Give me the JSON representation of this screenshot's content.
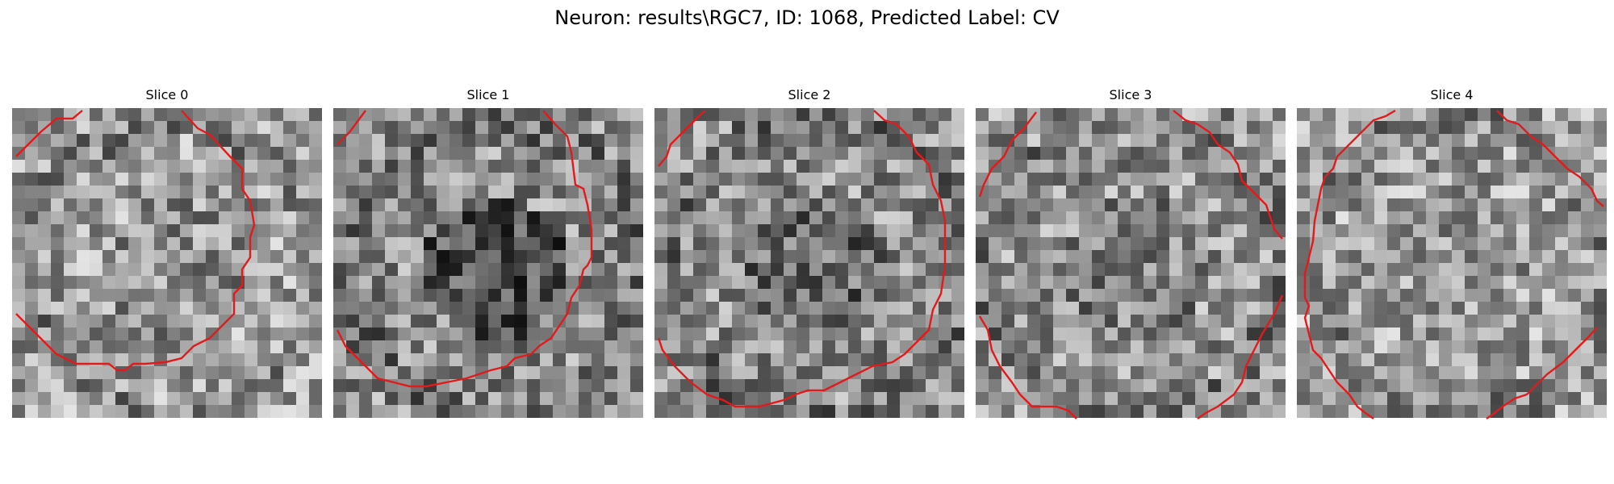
{
  "figure": {
    "title": "Neuron: results\\RGC7, ID: 1068, Predicted Label: CV"
  },
  "contour_color": "#e31a1c",
  "panels": [
    {
      "label": "Slice 0",
      "seed": 11,
      "brightness": 0.62,
      "center_dark": 0.05
    },
    {
      "label": "Slice 1",
      "seed": 23,
      "brightness": 0.55,
      "center_dark": 0.22
    },
    {
      "label": "Slice 2",
      "seed": 37,
      "brightness": 0.56,
      "center_dark": 0.15
    },
    {
      "label": "Slice 3",
      "seed": 41,
      "brightness": 0.58,
      "center_dark": 0.08
    },
    {
      "label": "Slice 4",
      "seed": 59,
      "brightness": 0.63,
      "center_dark": 0.03
    }
  ]
}
